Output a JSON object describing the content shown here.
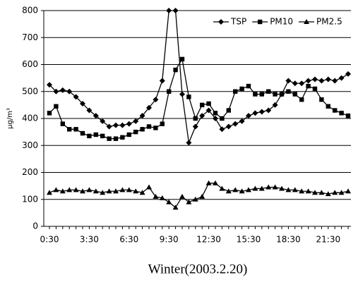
{
  "chart_data": {
    "type": "line",
    "title": "Winter(2003.2.20)",
    "y_label": "μg/m³",
    "categories": [
      "0:30",
      null,
      null,
      null,
      null,
      null,
      "3:30",
      null,
      null,
      null,
      null,
      null,
      "6:30",
      null,
      null,
      null,
      null,
      null,
      "9:30",
      null,
      null,
      null,
      null,
      null,
      "12:30",
      null,
      null,
      null,
      null,
      null,
      "15:30",
      null,
      null,
      null,
      null,
      null,
      "18:30",
      null,
      null,
      null,
      null,
      null,
      "21:30",
      null,
      null,
      null
    ],
    "series": [
      {
        "name": "TSP",
        "color": "#000000",
        "marker": "diamond",
        "values": [
          525,
          500,
          505,
          500,
          480,
          455,
          430,
          410,
          390,
          370,
          375,
          375,
          380,
          390,
          410,
          440,
          470,
          540,
          800,
          800,
          490,
          310,
          370,
          410,
          430,
          400,
          360,
          370,
          380,
          390,
          410,
          420,
          425,
          430,
          450,
          490,
          540,
          530,
          530,
          540,
          545,
          540,
          545,
          540,
          550,
          565
        ]
      },
      {
        "name": "PM10",
        "color": "#000000",
        "marker": "square",
        "values": [
          420,
          445,
          380,
          360,
          360,
          345,
          335,
          340,
          335,
          325,
          325,
          330,
          340,
          350,
          360,
          370,
          365,
          380,
          500,
          580,
          620,
          480,
          400,
          450,
          455,
          420,
          400,
          430,
          500,
          510,
          520,
          490,
          490,
          500,
          490,
          490,
          500,
          490,
          470,
          520,
          510,
          470,
          445,
          430,
          420,
          410
        ]
      },
      {
        "name": "PM2.5",
        "color": "#000000",
        "marker": "triangle",
        "values": [
          125,
          135,
          130,
          135,
          135,
          130,
          135,
          130,
          125,
          130,
          130,
          135,
          135,
          130,
          125,
          145,
          110,
          105,
          90,
          70,
          110,
          90,
          100,
          110,
          160,
          160,
          140,
          130,
          135,
          130,
          135,
          140,
          140,
          145,
          145,
          140,
          135,
          135,
          130,
          130,
          125,
          125,
          120,
          125,
          125,
          130
        ]
      }
    ],
    "ylim": [
      0,
      800
    ],
    "yticks": [
      0,
      100,
      200,
      300,
      400,
      500,
      600,
      700,
      800
    ],
    "grid": true,
    "legend": "upper right"
  }
}
